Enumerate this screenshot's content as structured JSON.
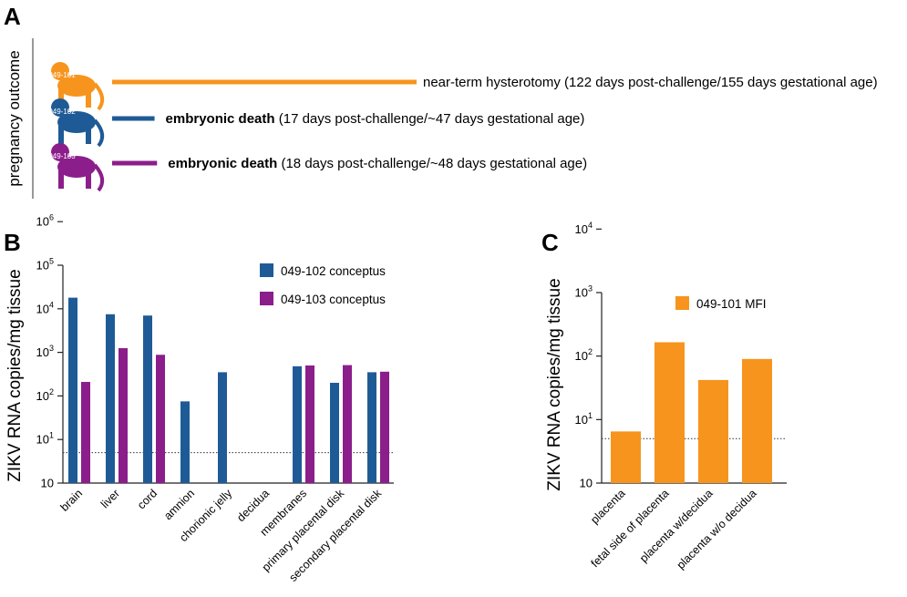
{
  "panel_labels": {
    "a": "A",
    "b": "B",
    "c": "C"
  },
  "panel_a": {
    "ylabel": "pregnancy outcome",
    "rows": [
      {
        "id": "049-101",
        "color": "#F7941D",
        "bold_text": "",
        "text": "near-term hysterotomy (122 days post-challenge/155 days gestational age)",
        "days": 122
      },
      {
        "id": "049-102",
        "color": "#1E5B96",
        "bold_text": "embryonic death",
        "text": "(17 days post-challenge/~47 days gestational age)",
        "days": 17
      },
      {
        "id": "049-103",
        "color": "#8B1E8B",
        "bold_text": "embryonic death",
        "text": "(18 days post-challenge/~48 days gestational age)",
        "days": 18
      }
    ]
  },
  "chart_data": [
    {
      "type": "bar",
      "panel": "B",
      "ylabel": "ZIKV RNA copies/mg tissue",
      "yscale": "log",
      "ylim": [
        10,
        1000000
      ],
      "yticks": [
        {
          "base": "10",
          "exp": ""
        },
        {
          "base": "10",
          "exp": "1"
        },
        {
          "base": "10",
          "exp": "2"
        },
        {
          "base": "10",
          "exp": "3"
        },
        {
          "base": "10",
          "exp": "4"
        },
        {
          "base": "10",
          "exp": "5"
        },
        {
          "base": "10",
          "exp": "6"
        }
      ],
      "threshold": 50,
      "categories": [
        "brain",
        "liver",
        "cord",
        "amnion",
        "chorionic jelly",
        "decidua",
        "membranes",
        "primary placental disk",
        "secondary placental disk"
      ],
      "series": [
        {
          "name": "049-102 conceptus",
          "color": "#1E5B96",
          "values": [
            180000,
            75000,
            70000,
            750,
            3500,
            null,
            4800,
            2000,
            3500
          ]
        },
        {
          "name": "049-103 conceptus",
          "color": "#8B1E8B",
          "values": [
            2100,
            12500,
            8800,
            null,
            null,
            null,
            5000,
            5100,
            3600
          ]
        }
      ],
      "legend": "top-right"
    },
    {
      "type": "bar",
      "panel": "C",
      "ylabel": "ZIKV RNA copies/mg tissue",
      "yscale": "log",
      "ylim": [
        10,
        10000
      ],
      "yticks": [
        {
          "base": "10",
          "exp": ""
        },
        {
          "base": "10",
          "exp": "1"
        },
        {
          "base": "10",
          "exp": "2"
        },
        {
          "base": "10",
          "exp": "3"
        },
        {
          "base": "10",
          "exp": "4"
        }
      ],
      "threshold": 50,
      "categories": [
        "placenta",
        "fetal side of placenta",
        "placenta w/decidua",
        "placenta w/o decidua"
      ],
      "series": [
        {
          "name": "049-101 MFI",
          "color": "#F7941D",
          "values": [
            65,
            1650,
            420,
            900
          ]
        }
      ],
      "legend": "top-right"
    }
  ]
}
